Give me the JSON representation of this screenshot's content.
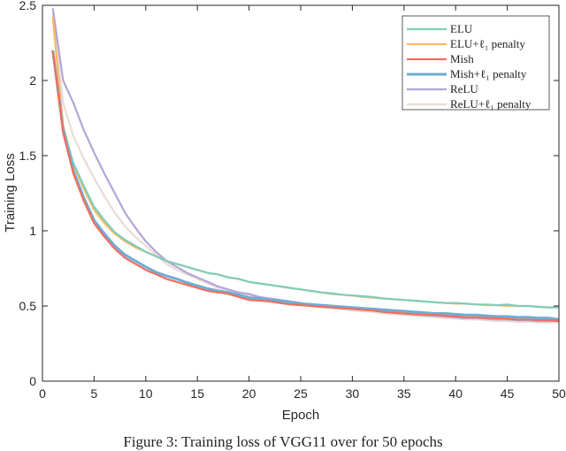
{
  "chart_data": {
    "type": "line",
    "title": "",
    "xlabel": "Epoch",
    "ylabel": "Training Loss",
    "xlim": [
      0,
      50
    ],
    "ylim": [
      0,
      2.5
    ],
    "xticks": [
      0,
      5,
      10,
      15,
      20,
      25,
      30,
      35,
      40,
      45,
      50
    ],
    "yticks": [
      0,
      0.5,
      1,
      1.5,
      2,
      2.5
    ],
    "grid": false,
    "legend_placement": "top-right",
    "x": [
      1,
      2,
      3,
      4,
      5,
      6,
      7,
      8,
      9,
      10,
      11,
      12,
      13,
      14,
      15,
      16,
      17,
      18,
      19,
      20,
      21,
      22,
      23,
      24,
      25,
      26,
      27,
      28,
      29,
      30,
      31,
      32,
      33,
      34,
      35,
      36,
      37,
      38,
      39,
      40,
      41,
      42,
      43,
      44,
      45,
      46,
      47,
      48,
      49,
      50
    ],
    "series": [
      {
        "name": "ELU",
        "color": "#7fcdbb",
        "values": [
          2.2,
          1.68,
          1.45,
          1.3,
          1.16,
          1.07,
          0.99,
          0.94,
          0.9,
          0.86,
          0.83,
          0.8,
          0.78,
          0.76,
          0.74,
          0.72,
          0.71,
          0.69,
          0.68,
          0.66,
          0.65,
          0.64,
          0.63,
          0.62,
          0.61,
          0.6,
          0.59,
          0.585,
          0.575,
          0.57,
          0.565,
          0.56,
          0.55,
          0.545,
          0.54,
          0.535,
          0.53,
          0.525,
          0.52,
          0.52,
          0.515,
          0.51,
          0.51,
          0.505,
          0.51,
          0.5,
          0.5,
          0.495,
          0.49,
          0.49
        ]
      },
      {
        "name": "ELU+ℓ₁ penalty",
        "color": "#fdb863",
        "values": [
          2.42,
          1.7,
          1.44,
          1.28,
          1.14,
          1.05,
          0.98,
          0.93,
          0.89,
          0.86,
          0.83,
          0.8,
          0.78,
          0.76,
          0.74,
          0.72,
          0.71,
          0.69,
          0.68,
          0.66,
          0.65,
          0.64,
          0.63,
          0.62,
          0.61,
          0.6,
          0.59,
          0.58,
          0.575,
          0.57,
          0.56,
          0.555,
          0.55,
          0.545,
          0.54,
          0.535,
          0.53,
          0.525,
          0.52,
          0.515,
          0.515,
          0.51,
          0.505,
          0.505,
          0.5,
          0.5,
          0.5,
          0.495,
          0.49,
          0.495
        ]
      },
      {
        "name": "Mish",
        "color": "#f46d5e",
        "values": [
          2.2,
          1.65,
          1.38,
          1.2,
          1.05,
          0.96,
          0.88,
          0.82,
          0.78,
          0.74,
          0.71,
          0.68,
          0.66,
          0.64,
          0.62,
          0.6,
          0.59,
          0.58,
          0.56,
          0.54,
          0.535,
          0.53,
          0.52,
          0.51,
          0.505,
          0.5,
          0.495,
          0.49,
          0.485,
          0.48,
          0.475,
          0.47,
          0.46,
          0.455,
          0.45,
          0.445,
          0.44,
          0.44,
          0.435,
          0.43,
          0.425,
          0.425,
          0.42,
          0.42,
          0.415,
          0.41,
          0.41,
          0.405,
          0.405,
          0.4
        ]
      },
      {
        "name": "Mish+ℓ₁ penalty",
        "color": "#6baed6",
        "values": [
          2.2,
          1.67,
          1.4,
          1.22,
          1.07,
          0.98,
          0.9,
          0.84,
          0.8,
          0.76,
          0.725,
          0.7,
          0.68,
          0.655,
          0.635,
          0.615,
          0.6,
          0.59,
          0.575,
          0.555,
          0.55,
          0.54,
          0.535,
          0.525,
          0.515,
          0.51,
          0.505,
          0.5,
          0.495,
          0.49,
          0.485,
          0.48,
          0.475,
          0.47,
          0.465,
          0.46,
          0.455,
          0.45,
          0.45,
          0.445,
          0.44,
          0.44,
          0.435,
          0.43,
          0.43,
          0.425,
          0.425,
          0.42,
          0.42,
          0.41
        ]
      },
      {
        "name": "ReLU",
        "color": "#b3a6d6",
        "values": [
          2.48,
          2.0,
          1.85,
          1.67,
          1.52,
          1.38,
          1.25,
          1.12,
          1.02,
          0.93,
          0.86,
          0.8,
          0.76,
          0.72,
          0.69,
          0.66,
          0.63,
          0.61,
          0.59,
          0.58,
          0.56,
          0.55,
          0.54,
          0.53,
          0.52,
          0.51,
          0.5,
          0.495,
          0.49,
          0.48,
          0.475,
          0.47,
          0.46,
          0.455,
          0.45,
          0.445,
          0.44,
          0.435,
          0.43,
          0.425,
          0.42,
          0.42,
          0.415,
          0.41,
          0.41,
          0.405,
          0.405,
          0.4,
          0.4,
          0.4
        ]
      },
      {
        "name": "ReLU+ℓ₁ penalty",
        "color": "#e8dcd4",
        "values": [
          2.45,
          1.85,
          1.63,
          1.48,
          1.35,
          1.23,
          1.12,
          1.03,
          0.96,
          0.9,
          0.84,
          0.78,
          0.74,
          0.71,
          0.68,
          0.65,
          0.62,
          0.6,
          0.58,
          0.57,
          0.55,
          0.54,
          0.53,
          0.52,
          0.51,
          0.5,
          0.49,
          0.485,
          0.48,
          0.47,
          0.465,
          0.46,
          0.45,
          0.445,
          0.44,
          0.435,
          0.43,
          0.425,
          0.42,
          0.415,
          0.41,
          0.41,
          0.405,
          0.4,
          0.4,
          0.395,
          0.395,
          0.39,
          0.39,
          0.39
        ]
      }
    ]
  },
  "caption": "Figure 3: Training loss of VGG11 over for 50 epochs"
}
